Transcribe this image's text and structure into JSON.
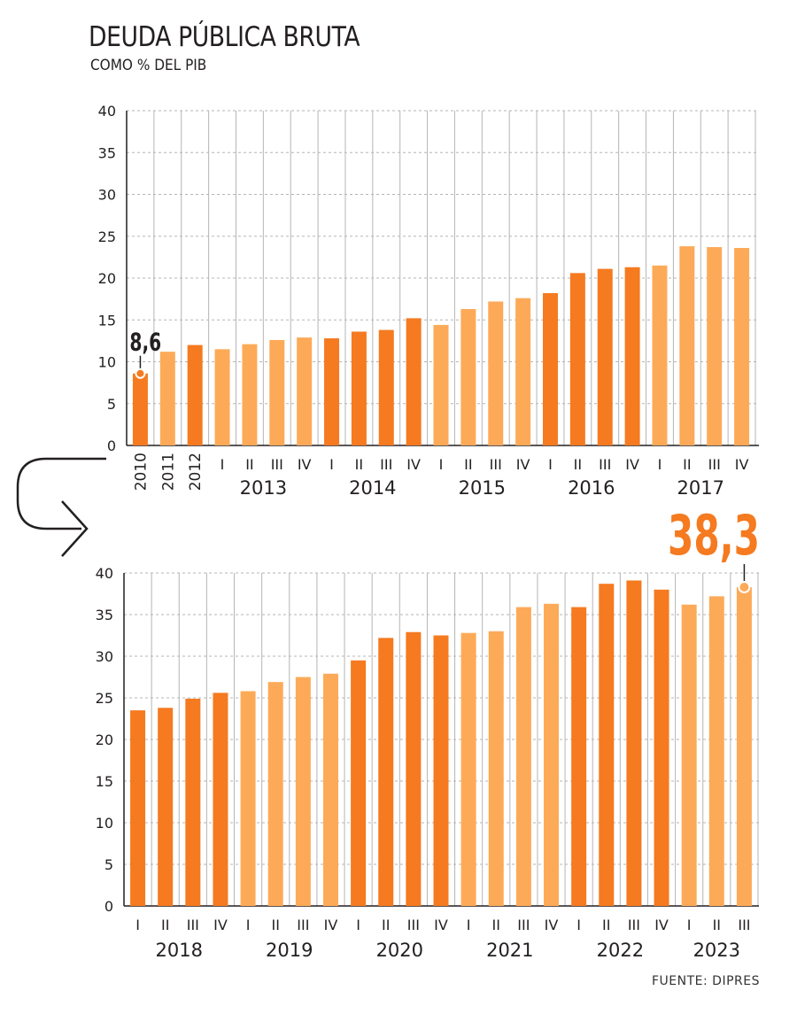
{
  "header": {
    "title": "DEUDA PÚBLICA BRUTA",
    "subtitle": "COMO % DEL PIB"
  },
  "footer": {
    "source": "FUENTE: DIPRES"
  },
  "colors": {
    "dark": "#f57a20",
    "light": "#fdaa58",
    "grid": "#b5b5b5",
    "axis": "#231f20",
    "highlight_label_top": "#231f20",
    "highlight_label_bottom": "#f57a20"
  },
  "chart_data": [
    {
      "type": "bar",
      "ylim": [
        0,
        40
      ],
      "yticks": [
        0,
        5,
        10,
        15,
        20,
        25,
        30,
        35,
        40
      ],
      "grid": true,
      "categories": [
        "2010",
        "2011",
        "2012",
        "I",
        "II",
        "III",
        "IV",
        "I",
        "II",
        "III",
        "IV",
        "I",
        "II",
        "III",
        "IV",
        "I",
        "II",
        "III",
        "IV",
        "I",
        "II",
        "III",
        "IV"
      ],
      "values": [
        8.6,
        11.2,
        12.0,
        11.5,
        12.1,
        12.6,
        12.9,
        12.8,
        13.6,
        13.8,
        15.2,
        14.4,
        16.3,
        17.2,
        17.6,
        18.2,
        20.6,
        21.1,
        21.3,
        21.5,
        23.8,
        23.7,
        23.6
      ],
      "shade": [
        "dark",
        "light",
        "dark",
        "light",
        "light",
        "light",
        "light",
        "dark",
        "dark",
        "dark",
        "dark",
        "light",
        "light",
        "light",
        "light",
        "dark",
        "dark",
        "dark",
        "dark",
        "light",
        "light",
        "light",
        "light"
      ],
      "groups": [
        {
          "label": "2013",
          "start": 3,
          "end": 6
        },
        {
          "label": "2014",
          "start": 7,
          "end": 10
        },
        {
          "label": "2015",
          "start": 11,
          "end": 14
        },
        {
          "label": "2016",
          "start": 15,
          "end": 18
        },
        {
          "label": "2017",
          "start": 19,
          "end": 22
        }
      ],
      "highlight": {
        "index": 0,
        "label": "8,6"
      }
    },
    {
      "type": "bar",
      "ylim": [
        0,
        40
      ],
      "yticks": [
        0,
        5,
        10,
        15,
        20,
        25,
        30,
        35,
        40
      ],
      "grid": true,
      "categories": [
        "I",
        "II",
        "III",
        "IV",
        "I",
        "II",
        "III",
        "IV",
        "I",
        "II",
        "III",
        "IV",
        "I",
        "II",
        "III",
        "IV",
        "I",
        "II",
        "III",
        "IV",
        "I",
        "II",
        "III"
      ],
      "values": [
        23.5,
        23.8,
        24.9,
        25.6,
        25.8,
        26.9,
        27.5,
        27.9,
        29.5,
        32.2,
        32.9,
        32.5,
        32.8,
        33.0,
        35.9,
        36.3,
        35.9,
        38.7,
        39.1,
        38.0,
        36.2,
        37.2,
        38.3
      ],
      "shade": [
        "dark",
        "dark",
        "dark",
        "dark",
        "light",
        "light",
        "light",
        "light",
        "dark",
        "dark",
        "dark",
        "dark",
        "light",
        "light",
        "light",
        "light",
        "dark",
        "dark",
        "dark",
        "dark",
        "light",
        "light",
        "light"
      ],
      "groups": [
        {
          "label": "2018",
          "start": 0,
          "end": 3
        },
        {
          "label": "2019",
          "start": 4,
          "end": 7
        },
        {
          "label": "2020",
          "start": 8,
          "end": 11
        },
        {
          "label": "2021",
          "start": 12,
          "end": 15
        },
        {
          "label": "2022",
          "start": 16,
          "end": 19
        },
        {
          "label": "2023",
          "start": 20,
          "end": 22
        }
      ],
      "highlight": {
        "index": 22,
        "label": "38,3"
      }
    }
  ]
}
